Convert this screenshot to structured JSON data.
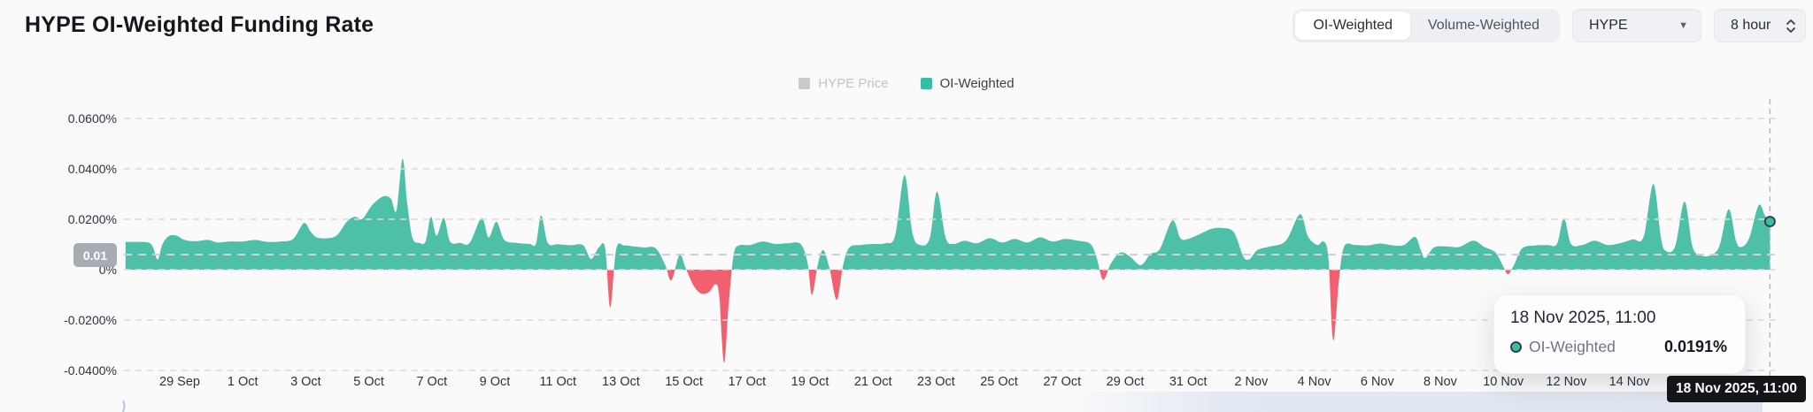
{
  "header": {
    "title": "HYPE OI-Weighted Funding Rate"
  },
  "controls": {
    "segmented": {
      "options": [
        "OI-Weighted",
        "Volume-Weighted"
      ],
      "active": "OI-Weighted"
    },
    "coin_select": {
      "value": "HYPE"
    },
    "interval_select": {
      "value": "8 hour"
    }
  },
  "legend": {
    "items": [
      {
        "label": "HYPE Price",
        "color": "#c9cacd",
        "dimmed": true
      },
      {
        "label": "OI-Weighted",
        "color": "#35c0a6",
        "dimmed": false
      }
    ]
  },
  "value_badge": {
    "label": "0.01"
  },
  "tooltip": {
    "title": "18 Nov 2025, 11:00",
    "series": "OI-Weighted",
    "value": "0.0191%"
  },
  "axis_badge": {
    "label": "18 Nov 2025, 11:00"
  },
  "chart_data": {
    "type": "area",
    "title": "HYPE OI-Weighted Funding Rate",
    "interval": "8 hour",
    "ylabel": "funding rate",
    "yticks": [
      "0.0600%",
      "0.0400%",
      "0.0200%",
      "0%",
      "-0.0200%",
      "-0.0400%"
    ],
    "ytick_values": [
      0.06,
      0.04,
      0.02,
      0,
      -0.02,
      -0.04
    ],
    "ylim": [
      -0.05,
      0.07
    ],
    "xticks": [
      "29 Sep",
      "1 Oct",
      "3 Oct",
      "5 Oct",
      "7 Oct",
      "9 Oct",
      "11 Oct",
      "13 Oct",
      "15 Oct",
      "17 Oct",
      "19 Oct",
      "21 Oct",
      "23 Oct",
      "25 Oct",
      "27 Oct",
      "29 Oct",
      "31 Oct",
      "2 Nov",
      "4 Nov",
      "6 Nov",
      "8 Nov",
      "10 Nov",
      "12 Nov",
      "14 Nov",
      "16 Nov"
    ],
    "grid": true,
    "legend_position": "top-center",
    "positive_color": "#4fc0a8",
    "negative_color": "#f25f6e",
    "reference_line": {
      "label": "0.01",
      "value_pct": 0.01
    },
    "last_point": {
      "date": "18 Nov 2025, 11:00",
      "value_pct": 0.0191
    },
    "series": [
      {
        "name": "OI-Weighted",
        "x_unit": "days since 29 Sep 00:00",
        "y_unit": "percent per 8h",
        "points": [
          [
            -1.72,
            0.011
          ],
          [
            -1.4,
            0.011
          ],
          [
            -1.0,
            0.0108
          ],
          [
            -0.85,
            0.009
          ],
          [
            -0.7,
            0.004
          ],
          [
            -0.55,
            0.01
          ],
          [
            -0.35,
            0.0133
          ],
          [
            -0.1,
            0.0135
          ],
          [
            0.15,
            0.0118
          ],
          [
            0.5,
            0.0113
          ],
          [
            0.9,
            0.0118
          ],
          [
            1.2,
            0.0108
          ],
          [
            1.6,
            0.0112
          ],
          [
            2.0,
            0.0112
          ],
          [
            2.4,
            0.0118
          ],
          [
            2.8,
            0.011
          ],
          [
            3.2,
            0.0112
          ],
          [
            3.6,
            0.0122
          ],
          [
            3.94,
            0.0185
          ],
          [
            4.15,
            0.0152
          ],
          [
            4.35,
            0.0128
          ],
          [
            4.7,
            0.0125
          ],
          [
            5.0,
            0.0138
          ],
          [
            5.3,
            0.019
          ],
          [
            5.55,
            0.021
          ],
          [
            5.8,
            0.0202
          ],
          [
            6.1,
            0.0255
          ],
          [
            6.45,
            0.029
          ],
          [
            6.7,
            0.0282
          ],
          [
            6.88,
            0.0235
          ],
          [
            7.07,
            0.044
          ],
          [
            7.22,
            0.0265
          ],
          [
            7.38,
            0.0128
          ],
          [
            7.6,
            0.0106
          ],
          [
            7.8,
            0.0112
          ],
          [
            7.97,
            0.021
          ],
          [
            8.15,
            0.0135
          ],
          [
            8.38,
            0.0205
          ],
          [
            8.58,
            0.0112
          ],
          [
            8.9,
            0.0106
          ],
          [
            9.2,
            0.0106
          ],
          [
            9.58,
            0.0205
          ],
          [
            9.8,
            0.0128
          ],
          [
            10.05,
            0.019
          ],
          [
            10.3,
            0.0118
          ],
          [
            10.7,
            0.0106
          ],
          [
            11.1,
            0.0102
          ],
          [
            11.3,
            0.0102
          ],
          [
            11.47,
            0.0215
          ],
          [
            11.68,
            0.0106
          ],
          [
            12.0,
            0.0101
          ],
          [
            12.4,
            0.0097
          ],
          [
            12.8,
            0.0097
          ],
          [
            13.05,
            0.0042
          ],
          [
            13.3,
            0.0088
          ],
          [
            13.5,
            0.0085
          ],
          [
            13.66,
            -0.015
          ],
          [
            13.85,
            0.0082
          ],
          [
            14.1,
            0.0096
          ],
          [
            14.4,
            0.0092
          ],
          [
            14.75,
            0.0088
          ],
          [
            15.1,
            0.0085
          ],
          [
            15.4,
            0.002
          ],
          [
            15.6,
            -0.0042
          ],
          [
            15.86,
            0.0058
          ],
          [
            16.05,
            0.0008
          ],
          [
            16.3,
            -0.0062
          ],
          [
            16.55,
            -0.0095
          ],
          [
            16.8,
            -0.0088
          ],
          [
            17.0,
            -0.0058
          ],
          [
            17.12,
            -0.0105
          ],
          [
            17.27,
            -0.037
          ],
          [
            17.42,
            -0.0135
          ],
          [
            17.58,
            0.006
          ],
          [
            17.75,
            0.0096
          ],
          [
            18.1,
            0.0098
          ],
          [
            18.5,
            0.0112
          ],
          [
            18.9,
            0.0102
          ],
          [
            19.3,
            0.0105
          ],
          [
            19.7,
            0.0102
          ],
          [
            19.92,
            0.0028
          ],
          [
            20.06,
            -0.01
          ],
          [
            20.25,
            0.0022
          ],
          [
            20.42,
            0.0078
          ],
          [
            20.62,
            0.0005
          ],
          [
            20.85,
            -0.012
          ],
          [
            21.05,
            0.0018
          ],
          [
            21.25,
            0.0088
          ],
          [
            21.6,
            0.0098
          ],
          [
            22.0,
            0.0102
          ],
          [
            22.4,
            0.0105
          ],
          [
            22.7,
            0.0135
          ],
          [
            23.0,
            0.0375
          ],
          [
            23.25,
            0.0145
          ],
          [
            23.5,
            0.0098
          ],
          [
            23.8,
            0.0125
          ],
          [
            24.03,
            0.031
          ],
          [
            24.3,
            0.0128
          ],
          [
            24.55,
            0.0102
          ],
          [
            24.9,
            0.0115
          ],
          [
            25.3,
            0.0105
          ],
          [
            25.7,
            0.0125
          ],
          [
            26.1,
            0.0108
          ],
          [
            26.5,
            0.0122
          ],
          [
            26.9,
            0.0108
          ],
          [
            27.3,
            0.0128
          ],
          [
            27.7,
            0.0112
          ],
          [
            28.1,
            0.0122
          ],
          [
            28.5,
            0.0115
          ],
          [
            28.9,
            0.0102
          ],
          [
            29.1,
            0.0045
          ],
          [
            29.3,
            -0.004
          ],
          [
            29.55,
            0.0025
          ],
          [
            29.85,
            0.0068
          ],
          [
            30.15,
            0.0052
          ],
          [
            30.5,
            0.0018
          ],
          [
            30.8,
            0.0062
          ],
          [
            31.1,
            0.0082
          ],
          [
            31.5,
            0.0195
          ],
          [
            31.75,
            0.0125
          ],
          [
            32.0,
            0.0122
          ],
          [
            32.35,
            0.014
          ],
          [
            32.75,
            0.0162
          ],
          [
            33.1,
            0.0165
          ],
          [
            33.45,
            0.0148
          ],
          [
            33.75,
            0.0052
          ],
          [
            33.95,
            0.0042
          ],
          [
            34.2,
            0.0078
          ],
          [
            34.6,
            0.0092
          ],
          [
            35.1,
            0.0115
          ],
          [
            35.55,
            0.022
          ],
          [
            35.8,
            0.0132
          ],
          [
            36.1,
            0.0098
          ],
          [
            36.3,
            0.0112
          ],
          [
            36.45,
            0.0045
          ],
          [
            36.6,
            -0.028
          ],
          [
            36.78,
            -0.0045
          ],
          [
            36.95,
            0.0092
          ],
          [
            37.3,
            0.0098
          ],
          [
            37.7,
            0.0096
          ],
          [
            38.1,
            0.0104
          ],
          [
            38.5,
            0.0096
          ],
          [
            38.85,
            0.0098
          ],
          [
            39.2,
            0.013
          ],
          [
            39.38,
            0.0078
          ],
          [
            39.52,
            0.0046
          ],
          [
            39.8,
            0.0088
          ],
          [
            40.2,
            0.0092
          ],
          [
            40.6,
            0.009
          ],
          [
            41.05,
            0.0115
          ],
          [
            41.4,
            0.009
          ],
          [
            41.75,
            0.0068
          ],
          [
            42.0,
            0.0012
          ],
          [
            42.15,
            -0.0018
          ],
          [
            42.35,
            0.0022
          ],
          [
            42.6,
            0.0085
          ],
          [
            43.0,
            0.0096
          ],
          [
            43.4,
            0.0098
          ],
          [
            43.7,
            0.0102
          ],
          [
            43.92,
            0.0204
          ],
          [
            44.15,
            0.0102
          ],
          [
            44.5,
            0.0098
          ],
          [
            44.9,
            0.0115
          ],
          [
            45.3,
            0.0098
          ],
          [
            45.7,
            0.0105
          ],
          [
            46.1,
            0.012
          ],
          [
            46.45,
            0.013
          ],
          [
            46.76,
            0.034
          ],
          [
            47.0,
            0.0128
          ],
          [
            47.15,
            0.0075
          ],
          [
            47.45,
            0.0092
          ],
          [
            47.75,
            0.027
          ],
          [
            48.0,
            0.0092
          ],
          [
            48.25,
            0.0058
          ],
          [
            48.55,
            0.0056
          ],
          [
            48.85,
            0.0092
          ],
          [
            49.15,
            0.024
          ],
          [
            49.38,
            0.0115
          ],
          [
            49.55,
            0.009
          ],
          [
            49.8,
            0.0125
          ],
          [
            50.1,
            0.0255
          ],
          [
            50.3,
            0.0215
          ],
          [
            50.46,
            0.0191
          ]
        ]
      }
    ]
  }
}
